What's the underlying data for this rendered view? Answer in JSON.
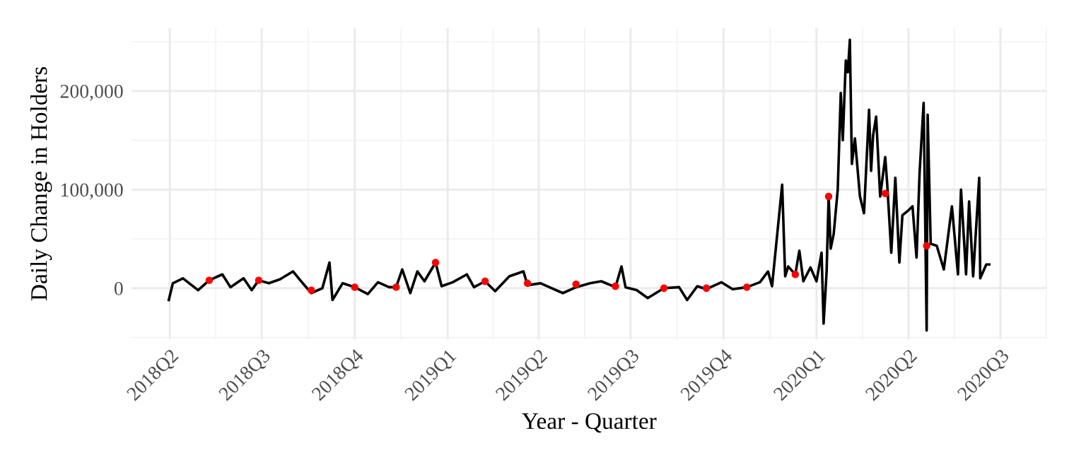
{
  "chart_data": {
    "type": "line",
    "xlabel": "Year - Quarter",
    "ylabel": "Daily Change in Holders",
    "xlim": [
      "2018-02-22",
      "2020-08-16"
    ],
    "ylim": [
      -52000,
      264000
    ],
    "xticks": [
      {
        "value": "2018-04-01",
        "label": "2018Q2"
      },
      {
        "value": "2018-07-01",
        "label": "2018Q3"
      },
      {
        "value": "2018-10-01",
        "label": "2018Q4"
      },
      {
        "value": "2019-01-01",
        "label": "2019Q1"
      },
      {
        "value": "2019-04-01",
        "label": "2019Q2"
      },
      {
        "value": "2019-07-01",
        "label": "2019Q3"
      },
      {
        "value": "2019-10-01",
        "label": "2019Q4"
      },
      {
        "value": "2020-01-01",
        "label": "2020Q1"
      },
      {
        "value": "2020-04-01",
        "label": "2020Q2"
      },
      {
        "value": "2020-07-01",
        "label": "2020Q3"
      }
    ],
    "yticks": [
      {
        "value": 0,
        "label": "0"
      },
      {
        "value": 100000,
        "label": "100,000"
      },
      {
        "value": 200000,
        "label": "200,000"
      }
    ],
    "grid": true,
    "legend": false,
    "series": [
      {
        "color": "#000000",
        "x": [
          "2018-03-31",
          "2018-04-04",
          "2018-04-14",
          "2018-04-29",
          "2018-05-10",
          "2018-05-23",
          "2018-05-31",
          "2018-06-13",
          "2018-06-21",
          "2018-06-28",
          "2018-07-08",
          "2018-07-19",
          "2018-08-01",
          "2018-08-09",
          "2018-08-19",
          "2018-08-30",
          "2018-09-06",
          "2018-09-09",
          "2018-09-19",
          "2018-10-01",
          "2018-10-14",
          "2018-10-24",
          "2018-11-04",
          "2018-11-11",
          "2018-11-17",
          "2018-11-25",
          "2018-12-02",
          "2018-12-09",
          "2018-12-20",
          "2018-12-26",
          "2019-01-06",
          "2019-01-20",
          "2019-01-27",
          "2019-02-07",
          "2019-02-17",
          "2019-03-03",
          "2019-03-17",
          "2019-03-21",
          "2019-04-03",
          "2019-04-14",
          "2019-04-25",
          "2019-05-08",
          "2019-05-22",
          "2019-06-02",
          "2019-06-16",
          "2019-06-22",
          "2019-06-26",
          "2019-07-07",
          "2019-07-18",
          "2019-08-03",
          "2019-08-18",
          "2019-08-26",
          "2019-09-05",
          "2019-09-14",
          "2019-09-29",
          "2019-10-10",
          "2019-10-24",
          "2019-11-06",
          "2019-11-14",
          "2019-11-18",
          "2019-11-28",
          "2019-12-01",
          "2019-12-04",
          "2019-12-11",
          "2019-12-15",
          "2019-12-19",
          "2019-12-26",
          "2020-01-01",
          "2020-01-06",
          "2020-01-08",
          "2020-01-11",
          "2020-01-13",
          "2020-01-15",
          "2020-01-18",
          "2020-01-22",
          "2020-01-25",
          "2020-01-27",
          "2020-01-30",
          "2020-02-01",
          "2020-02-03",
          "2020-02-05",
          "2020-02-08",
          "2020-02-13",
          "2020-02-17",
          "2020-02-22",
          "2020-02-24",
          "2020-02-26",
          "2020-02-29",
          "2020-03-04",
          "2020-03-09",
          "2020-03-11",
          "2020-03-15",
          "2020-03-19",
          "2020-03-23",
          "2020-03-26",
          "2020-04-01",
          "2020-04-05",
          "2020-04-09",
          "2020-04-12",
          "2020-04-16",
          "2020-04-19",
          "2020-04-20",
          "2020-04-23",
          "2020-04-29",
          "2020-05-06",
          "2020-05-14",
          "2020-05-20",
          "2020-05-23",
          "2020-05-28",
          "2020-05-31",
          "2020-06-04",
          "2020-06-10",
          "2020-06-11",
          "2020-06-17",
          "2020-06-20"
        ],
        "values": [
          -12000,
          5000,
          10000,
          -2000,
          8000,
          14000,
          1000,
          10000,
          -2000,
          8000,
          5000,
          9000,
          17000,
          7000,
          -5000,
          0,
          26000,
          -12000,
          5000,
          1000,
          -6000,
          6000,
          1000,
          1000,
          19000,
          -5000,
          17000,
          7000,
          26000,
          2000,
          6000,
          14000,
          1000,
          7000,
          -3000,
          12000,
          17000,
          3000,
          5000,
          0,
          -5000,
          1000,
          5000,
          7000,
          1000,
          22000,
          1000,
          -2000,
          -10000,
          0,
          1000,
          -12000,
          2000,
          -1000,
          6000,
          -1000,
          1000,
          6000,
          17000,
          2000,
          105000,
          12000,
          22000,
          14000,
          38000,
          7000,
          21000,
          7000,
          36000,
          -36000,
          17000,
          93000,
          40000,
          55000,
          100000,
          198000,
          150000,
          231000,
          219000,
          252000,
          126000,
          152000,
          93000,
          76000,
          181000,
          119000,
          155000,
          174000,
          93000,
          133000,
          105000,
          36000,
          112000,
          26000,
          74000,
          79000,
          83000,
          31000,
          117000,
          188000,
          -43000,
          176000,
          45000,
          43000,
          19000,
          83000,
          14000,
          100000,
          14000,
          88000,
          12000,
          112000,
          10000,
          24000,
          24000
        ]
      },
      {
        "type": "scatter",
        "color": "#ff0000",
        "x": [
          "2018-05-10",
          "2018-06-28",
          "2018-08-19",
          "2018-10-01",
          "2018-11-11",
          "2018-12-20",
          "2019-02-07",
          "2019-03-21",
          "2019-05-08",
          "2019-06-16",
          "2019-08-03",
          "2019-09-14",
          "2019-10-24",
          "2019-12-11",
          "2020-01-13",
          "2020-03-09",
          "2020-04-19"
        ],
        "values": [
          8000,
          8000,
          -2000,
          1000,
          1000,
          26000,
          7000,
          5000,
          4000,
          2000,
          0,
          0,
          1000,
          14000,
          93000,
          96000,
          43000
        ]
      }
    ]
  }
}
